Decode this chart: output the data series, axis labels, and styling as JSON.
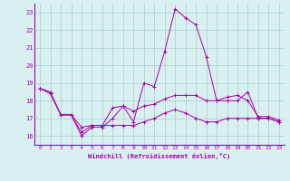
{
  "xlabel": "Windchill (Refroidissement éolien,°C)",
  "xlim": [
    -0.5,
    23.5
  ],
  "ylim": [
    15.5,
    23.5
  ],
  "yticks": [
    16,
    17,
    18,
    19,
    20,
    21,
    22,
    23
  ],
  "xticks": [
    0,
    1,
    2,
    3,
    4,
    5,
    6,
    7,
    8,
    9,
    10,
    11,
    12,
    13,
    14,
    15,
    16,
    17,
    18,
    19,
    20,
    21,
    22,
    23
  ],
  "bg_color": "#d8f0f0",
  "grid_color": "#aacccc",
  "line_color": "#aa00aa",
  "lines": [
    {
      "x": [
        0,
        1,
        2,
        3,
        4,
        5,
        6,
        7,
        8,
        9,
        10,
        11,
        12,
        13,
        14,
        15,
        16,
        17,
        18,
        19,
        20,
        21,
        22,
        23
      ],
      "y": [
        18.7,
        18.5,
        17.2,
        17.2,
        16.0,
        16.5,
        16.5,
        17.0,
        17.7,
        16.8,
        19.0,
        18.8,
        20.8,
        23.2,
        22.7,
        22.3,
        20.5,
        18.0,
        18.0,
        18.0,
        18.5,
        17.0,
        17.0,
        16.8
      ]
    },
    {
      "x": [
        0,
        1,
        2,
        3,
        4,
        5,
        6,
        7,
        8,
        9,
        10,
        11,
        12,
        13,
        14,
        15,
        16,
        17,
        18,
        19,
        20,
        21,
        22,
        23
      ],
      "y": [
        18.7,
        18.4,
        17.2,
        17.2,
        16.2,
        16.6,
        16.6,
        17.6,
        17.7,
        17.4,
        17.7,
        17.8,
        18.1,
        18.3,
        18.3,
        18.3,
        18.0,
        18.0,
        18.2,
        18.3,
        18.0,
        17.1,
        17.1,
        16.9
      ]
    },
    {
      "x": [
        0,
        1,
        2,
        3,
        4,
        5,
        6,
        7,
        8,
        9,
        10,
        11,
        12,
        13,
        14,
        15,
        16,
        17,
        18,
        19,
        20,
        21,
        22,
        23
      ],
      "y": [
        18.7,
        18.4,
        17.2,
        17.2,
        16.5,
        16.6,
        16.6,
        16.6,
        16.6,
        16.6,
        16.8,
        17.0,
        17.3,
        17.5,
        17.3,
        17.0,
        16.8,
        16.8,
        17.0,
        17.0,
        17.0,
        17.0,
        17.0,
        16.8
      ]
    }
  ]
}
